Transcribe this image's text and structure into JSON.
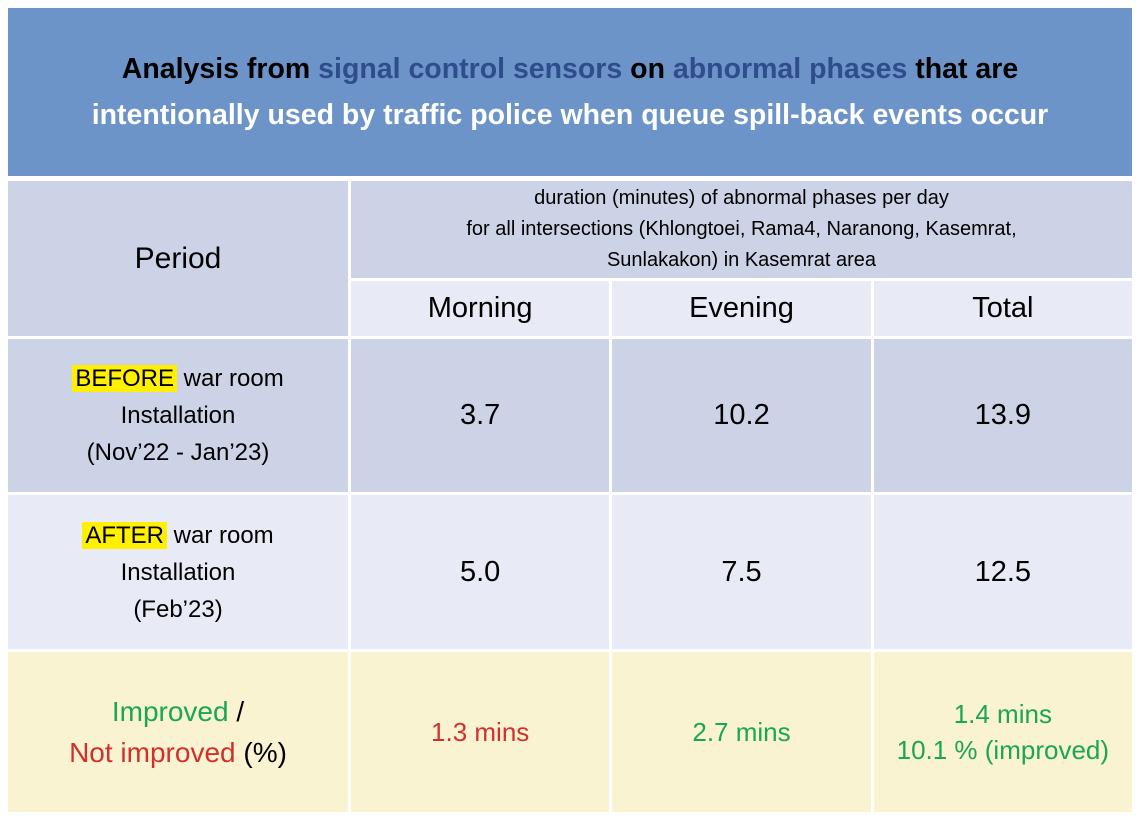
{
  "colors": {
    "title_background": "#6d94c8",
    "title_accent_navy": "#2f4c8c",
    "row_dark_lavender": "#cdd3e7",
    "row_light_lavender": "#e8ebf5",
    "row_cream": "#faf3d1",
    "highlight_yellow": "#ffef00",
    "improved_green": "#1aa653",
    "not_improved_red": "#d2302c"
  },
  "title": {
    "seg1": "Analysis from ",
    "seg2": "signal control sensors",
    "seg3": " on ",
    "seg4": "abnormal phases",
    "seg5": " that are",
    "line2": "intentionally used by traffic police when queue spill-back events occur"
  },
  "header": {
    "period": "Period",
    "duration_line1": "duration (minutes) of abnormal phases per day",
    "duration_line2": "for all intersections (Khlongtoei, Rama4, Naranong, Kasemrat,",
    "duration_line3": "Sunlakakon) in Kasemrat area",
    "col_morning": "Morning",
    "col_evening": "Evening",
    "col_total": "Total"
  },
  "before_row": {
    "highlight": "BEFORE",
    "label_rest": " war room",
    "label_line2": "Installation",
    "label_line3": "(Nov’22 - Jan’23)",
    "morning": "3.7",
    "evening": "10.2",
    "total": "13.9"
  },
  "after_row": {
    "highlight": "AFTER",
    "label_rest": " war room",
    "label_line2": "Installation",
    "label_line3": "(Feb’23)",
    "morning": "5.0",
    "evening": "7.5",
    "total": "12.5"
  },
  "improved_row": {
    "label_improved": "Improved",
    "label_slash": " /",
    "label_not_improved": "Not improved",
    "label_pct": " (%)",
    "morning": "1.3 mins",
    "evening": "2.7 mins",
    "total_line1": "1.4 mins",
    "total_line2": "10.1 % (improved)"
  },
  "chart_data": {
    "type": "table",
    "title": "Analysis from signal control sensors on abnormal phases that are intentionally used by traffic police when queue spill-back events occur",
    "value_description": "duration (minutes) of abnormal phases per day for all intersections (Khlongtoei, Rama4, Naranong, Kasemrat, Sunlakakon) in Kasemrat area",
    "columns": [
      "Period",
      "Morning",
      "Evening",
      "Total"
    ],
    "rows": [
      {
        "period": "BEFORE war room Installation (Nov’22 - Jan’23)",
        "morning": 3.7,
        "evening": 10.2,
        "total": 13.9
      },
      {
        "period": "AFTER war room Installation (Feb’23)",
        "morning": 5.0,
        "evening": 7.5,
        "total": 12.5
      },
      {
        "period": "Improved / Not improved (%)",
        "morning": "1.3 mins (not improved)",
        "evening": "2.7 mins (improved)",
        "total": "1.4 mins, 10.1 % (improved)"
      }
    ]
  }
}
